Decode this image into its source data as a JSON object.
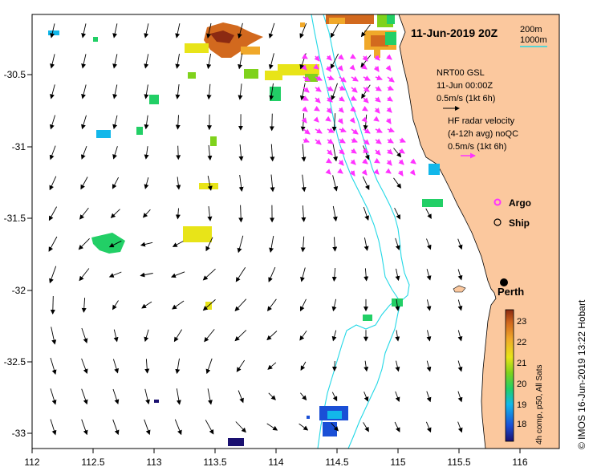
{
  "map": {
    "title": "11-Jun-2019 20Z",
    "x_ticks": [
      "112",
      "112.5",
      "113",
      "113.5",
      "114",
      "114.5",
      "115",
      "115.5",
      "116"
    ],
    "y_ticks": [
      "-30.5",
      "-31",
      "-31.5",
      "-32",
      "-32.5",
      "-33"
    ],
    "contours": {
      "c1": "200m",
      "c2": "1000m"
    },
    "legend": {
      "model_name": "NRT00 GSL",
      "model_date": "11-Jun 00:00Z",
      "model_scale": "0.5m/s (1kt 6h)",
      "hf_title": "HF radar velocity",
      "hf_sub": "(4-12h avg) noQC",
      "hf_scale": "0.5m/s (1kt 6h)",
      "argo": "Argo",
      "ship": "Ship"
    },
    "city": "Perth",
    "colorbar": {
      "ticks": [
        "23",
        "22",
        "21",
        "20",
        "19",
        "18"
      ],
      "label": "4h comp, p50, All Sats"
    },
    "credit": "© IMOS 16-Jun-2019 13:22 Hobart",
    "colors": {
      "land": "#fbc89e",
      "contour": "#22d8e6",
      "hf": "#ff44ff"
    }
  }
}
